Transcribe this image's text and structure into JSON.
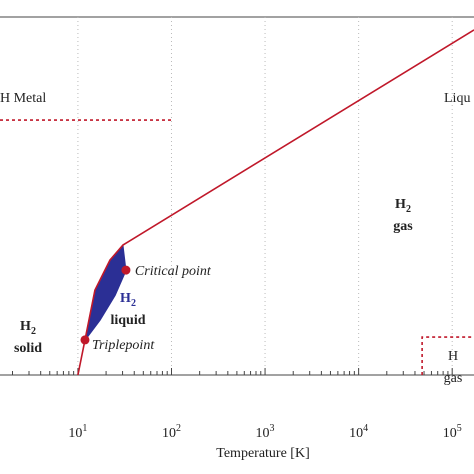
{
  "chart_data": {
    "type": "line",
    "x_label": "Temperature [K]",
    "xscale": "log",
    "xlim": [
      1.47,
      171000
    ],
    "ylim": [
      0,
      100
    ],
    "xticks": [
      {
        "value": 10,
        "label": "10",
        "exp": "1"
      },
      {
        "value": 100,
        "label": "10",
        "exp": "2"
      },
      {
        "value": 1000,
        "label": "10",
        "exp": "3"
      },
      {
        "value": 10000,
        "label": "10",
        "exp": "4"
      },
      {
        "value": 100000,
        "label": "10",
        "exp": "5"
      }
    ],
    "grid": true,
    "series": [
      {
        "color": "#c0182a",
        "x": [
          10,
          11.9,
          15.2,
          22,
          30.3,
          171000
        ],
        "values": [
          0,
          9.8,
          23.7,
          32.1,
          36.3,
          96.4
        ]
      },
      {
        "color": "#2b2f95",
        "x": [
          11.9,
          17.2,
          24.9,
          32.6
        ],
        "values": [
          9.8,
          15.4,
          22.3,
          29.3
        ]
      }
    ],
    "dashed_lines": [
      {
        "color": "#c0182a",
        "x": [
          1.47,
          101
        ],
        "values": [
          71.2,
          71.2
        ]
      },
      {
        "color": "#c0182a",
        "x": [
          47700,
          47700,
          171000
        ],
        "values": [
          0,
          10.6,
          10.6
        ]
      }
    ],
    "points": [
      {
        "label": "Triplepoint",
        "x": 11.9,
        "value": 9.8,
        "color": "#c0182a"
      },
      {
        "label": "Critical point",
        "x": 32.6,
        "value": 29.3,
        "color": "#c0182a"
      }
    ],
    "regions": [
      {
        "text": "H Metal"
      },
      {
        "text": "Liqu"
      },
      {
        "text": "H",
        "sub": "2",
        "line2": "solid"
      },
      {
        "text": "H",
        "sub": "2",
        "line2": "liquid"
      },
      {
        "text": "H",
        "sub": "2",
        "line2": "gas"
      },
      {
        "text": "H",
        "line2": "gas"
      }
    ]
  }
}
